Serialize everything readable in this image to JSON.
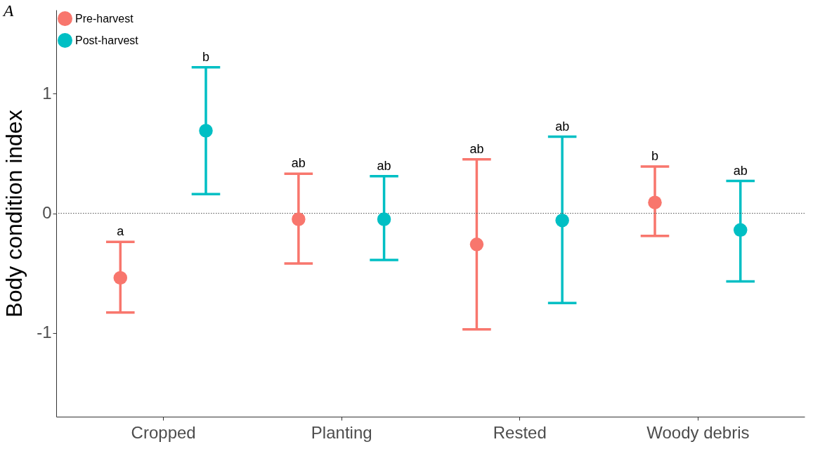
{
  "chart_data": {
    "type": "scatter",
    "ylabel": "Body condition index",
    "categories": [
      "Cropped",
      "Planting",
      "Rested",
      "Woody debris"
    ],
    "series": [
      {
        "name": "Pre-harvest",
        "color": "#f8766d",
        "values": [
          -0.54,
          -0.05,
          -0.26,
          0.09
        ],
        "errors": [
          [
            -0.83,
            -0.24
          ],
          [
            -0.42,
            0.33
          ],
          [
            -0.97,
            0.45
          ],
          [
            -0.19,
            0.39
          ]
        ]
      },
      {
        "name": "Post-harvest",
        "color": "#00bfc4",
        "values": [
          0.69,
          -0.05,
          -0.06,
          -0.14
        ],
        "errors": [
          [
            0.16,
            1.22
          ],
          [
            -0.39,
            0.31
          ],
          [
            -0.75,
            0.64
          ],
          [
            -0.57,
            0.27
          ]
        ]
      }
    ],
    "ylim": [
      -1.7,
      1.7
    ],
    "yticks": [
      -1,
      0,
      1
    ],
    "ref_lines": [
      {
        "axis": "y",
        "value": 0,
        "line_style": "dotted",
        "color": "#555555"
      }
    ],
    "annotations": [
      "A",
      "a",
      "b",
      "ab",
      "ab",
      "ab",
      "ab",
      "b",
      "ab"
    ],
    "legend": "top left",
    "marker": "circle",
    "grid": false
  }
}
